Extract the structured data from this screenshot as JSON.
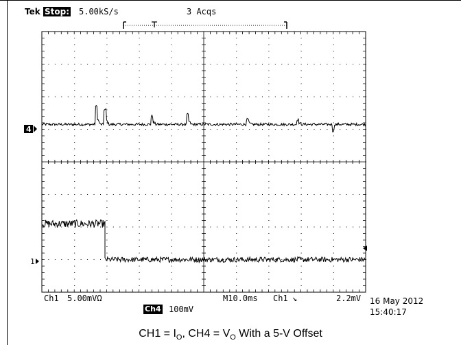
{
  "header": {
    "brand": "Tek",
    "state": "Stop:",
    "sample_rate": "5.00kS/s",
    "acquisitions": "3 Acqs"
  },
  "channels": {
    "ch4_marker": "4",
    "ch1_marker": "1"
  },
  "readout": {
    "ch1_label": "Ch1",
    "ch1_scale": "5.00mVΩ",
    "ch4_label": "Ch4",
    "ch4_scale": "100mV",
    "timebase": "M10.0ms",
    "trigger_source": "Ch1",
    "trigger_slope": "↘",
    "trigger_level": "2.2mV",
    "date": "16 May 2012",
    "time": "15:40:17"
  },
  "caption": {
    "p1": "CH1 = I",
    "s1": "O",
    "p2": ", CH4 = V",
    "s2": "O",
    "p3": " With a 5-V Offset"
  },
  "chart_data": {
    "type": "line",
    "x_divisions": 10,
    "y_divisions": 8,
    "x_unit_per_div": "10.0ms",
    "x_range_ms": [
      0,
      100
    ],
    "y_range_div": [
      -4,
      4
    ],
    "grid": true,
    "series": [
      {
        "name": "Ch4",
        "scale": "100mV/div",
        "color": "#000000",
        "baseline_div": 1.15,
        "noise_div": 0.04,
        "spikes": [
          {
            "t_ms": 16.8,
            "height_div": 0.55
          },
          {
            "t_ms": 19.5,
            "height_div": 0.45
          },
          {
            "t_ms": 34.0,
            "height_div": 0.25
          },
          {
            "t_ms": 45.0,
            "height_div": 0.3
          },
          {
            "t_ms": 63.5,
            "height_div": 0.15
          },
          {
            "t_ms": 79.0,
            "height_div": 0.15
          }
        ],
        "dips": [
          {
            "t_ms": 90.0,
            "depth_div": 0.2
          }
        ]
      },
      {
        "name": "Ch1",
        "scale": "5.00mV/div",
        "color": "#000000",
        "segments": [
          {
            "t_start_ms": 0,
            "t_end_ms": 19.5,
            "level_div": -1.9,
            "noise_div": 0.12
          },
          {
            "t_start_ms": 19.5,
            "t_end_ms": 100,
            "level_div": -3.0,
            "noise_div": 0.08
          }
        ]
      }
    ],
    "trigger_position_ms": 34.0,
    "record_window_ms": [
      26,
      79
    ]
  }
}
